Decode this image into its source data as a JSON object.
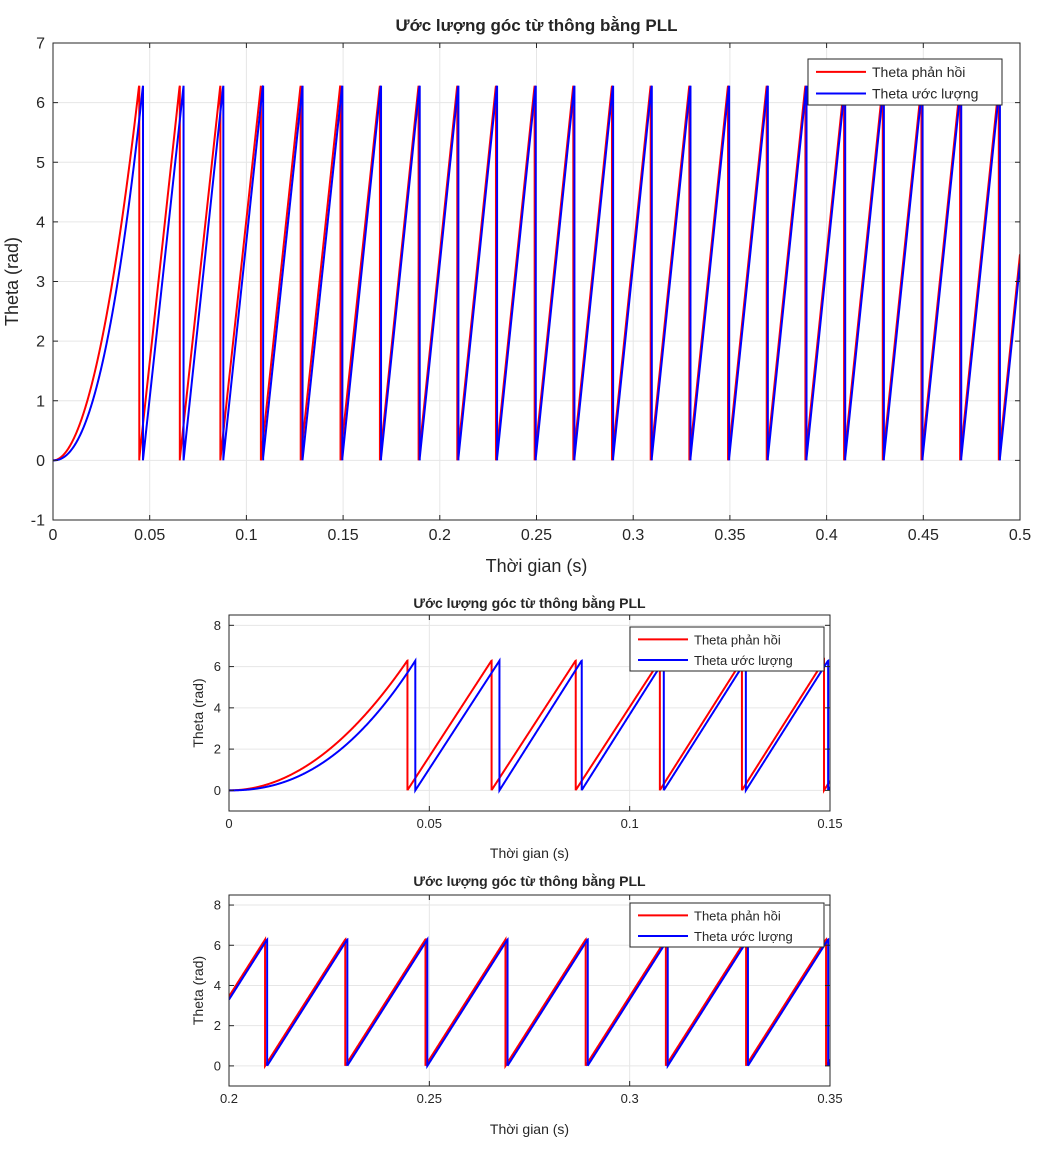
{
  "colors": {
    "feedback": "#ff0000",
    "estimate": "#0000ff",
    "grid": "#e6e6e6",
    "axis": "#262626"
  },
  "chart_data": [
    {
      "type": "line",
      "title": "Ước lượng góc từ thông bằng PLL",
      "xlabel": "Thời gian (s)",
      "ylabel": "Theta (rad)",
      "xlim": [
        0,
        0.5
      ],
      "ylim": [
        -1,
        7
      ],
      "xticks": [
        0,
        0.05,
        0.1,
        0.15,
        0.2,
        0.25,
        0.3,
        0.35,
        0.4,
        0.45,
        0.5
      ],
      "xtick_labels": [
        "0",
        "0.05",
        "0.1",
        "0.15",
        "0.2",
        "0.25",
        "0.3",
        "0.35",
        "0.4",
        "0.45",
        "0.5"
      ],
      "yticks": [
        -1,
        0,
        1,
        2,
        3,
        4,
        5,
        6,
        7
      ],
      "ytick_labels": [
        "-1",
        "0",
        "1",
        "2",
        "3",
        "4",
        "5",
        "6",
        "7"
      ],
      "grid": true,
      "legend_position": "top-right",
      "series": [
        {
          "name": "Theta phản hồi",
          "color": "#ff0000",
          "wraps": [
            0.0445,
            0.0655,
            0.0865,
            0.1075,
            0.128,
            0.1485,
            0.169,
            0.189,
            0.209,
            0.229,
            0.249,
            0.269,
            0.289,
            0.309,
            0.329,
            0.349,
            0.369,
            0.389,
            0.409,
            0.429,
            0.449,
            0.469,
            0.489
          ]
        },
        {
          "name": "Theta ước lượng",
          "color": "#0000ff",
          "wraps": [
            0.0465,
            0.0675,
            0.088,
            0.1085,
            0.129,
            0.1495,
            0.1695,
            0.1895,
            0.2095,
            0.2295,
            0.2495,
            0.2695,
            0.2895,
            0.3095,
            0.3295,
            0.3495,
            0.3695,
            0.3895,
            0.4095,
            0.4295,
            0.4495,
            0.4695,
            0.4895
          ]
        }
      ]
    },
    {
      "type": "line",
      "title": "Ước lượng góc từ thông bằng PLL",
      "xlabel": "Thời gian (s)",
      "ylabel": "Theta (rad)",
      "xlim": [
        0,
        0.15
      ],
      "ylim": [
        -1,
        8.5
      ],
      "xticks": [
        0,
        0.05,
        0.1,
        0.15
      ],
      "xtick_labels": [
        "0",
        "0.05",
        "0.1",
        "0.15"
      ],
      "yticks": [
        0,
        2,
        4,
        6,
        8
      ],
      "ytick_labels": [
        "0",
        "2",
        "4",
        "6",
        "8"
      ],
      "grid": true,
      "legend_position": "top-right",
      "series": [
        {
          "name": "Theta phản hồi",
          "color": "#ff0000"
        },
        {
          "name": "Theta ước lượng",
          "color": "#0000ff"
        }
      ]
    },
    {
      "type": "line",
      "title": "Ước lượng góc từ thông bằng PLL",
      "xlabel": "Thời gian (s)",
      "ylabel": "Theta (rad)",
      "xlim": [
        0.2,
        0.35
      ],
      "ylim": [
        -1,
        8.5
      ],
      "xticks": [
        0.2,
        0.25,
        0.3,
        0.35
      ],
      "xtick_labels": [
        "0.2",
        "0.25",
        "0.3",
        "0.35"
      ],
      "yticks": [
        0,
        2,
        4,
        6,
        8
      ],
      "ytick_labels": [
        "0",
        "2",
        "4",
        "6",
        "8"
      ],
      "grid": true,
      "legend_position": "top-right",
      "series": [
        {
          "name": "Theta phản hồi",
          "color": "#ff0000"
        },
        {
          "name": "Theta ước lượng",
          "color": "#0000ff"
        }
      ]
    }
  ]
}
